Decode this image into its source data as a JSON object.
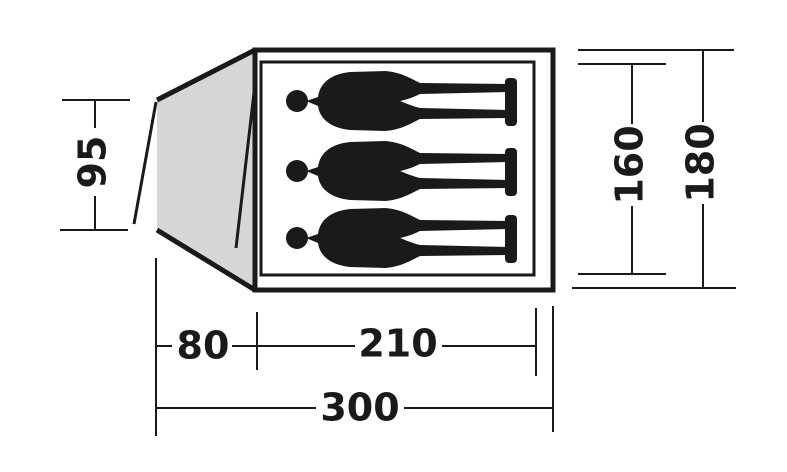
{
  "dimensions": {
    "porch_height": "95",
    "inner_width": "160",
    "outer_width": "180",
    "porch_length": "80",
    "inner_length": "210",
    "total_length": "300"
  },
  "sleeping_capacity": 3,
  "colors": {
    "line": "#1a1a1a",
    "porch_fill": "#d6d6d6",
    "background": "#ffffff"
  }
}
